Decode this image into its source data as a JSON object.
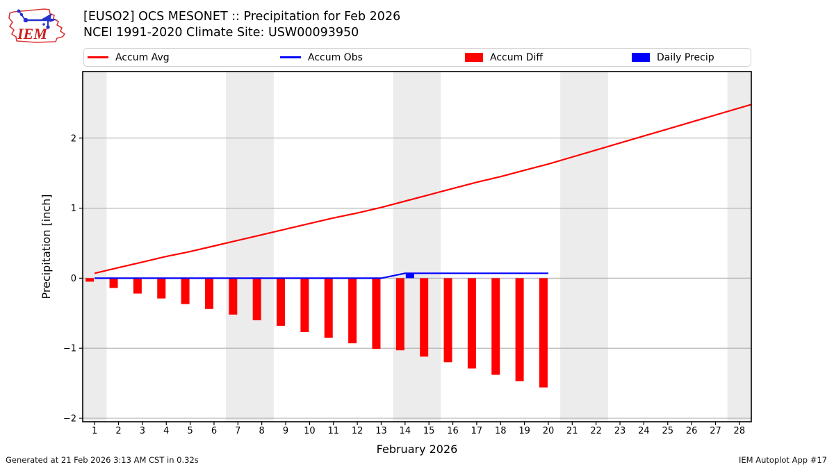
{
  "header": {
    "title_line1": "[EUSO2] OCS MESONET :: Precipitation for Feb 2026",
    "title_line2": "NCEI 1991-2020 Climate Site: USW00093950",
    "logo_text": "IEM"
  },
  "legend": {
    "items": [
      {
        "label": "Accum Avg",
        "swatch": "line",
        "color": "#ff0000"
      },
      {
        "label": "Accum Obs",
        "swatch": "line",
        "color": "#0000ff"
      },
      {
        "label": "Accum Diff",
        "swatch": "rect",
        "color": "#ff0000"
      },
      {
        "label": "Daily Precip",
        "swatch": "rect",
        "color": "#0000ff"
      }
    ]
  },
  "footer": {
    "left": "Generated at 21 Feb 2026 3:13 AM CST in 0.32s",
    "right": "IEM Autoplot App #17"
  },
  "chart_data": {
    "type": "line+bar",
    "xlabel": "February 2026",
    "ylabel": "Precipitation [inch]",
    "xlim": [
      0.5,
      28.5
    ],
    "ylim": [
      -2.05,
      2.95
    ],
    "yticks": [
      -2,
      -1,
      0,
      1,
      2
    ],
    "xticks": [
      1,
      2,
      3,
      4,
      5,
      6,
      7,
      8,
      9,
      10,
      11,
      12,
      13,
      14,
      15,
      16,
      17,
      18,
      19,
      20,
      21,
      22,
      23,
      24,
      25,
      26,
      27,
      28
    ],
    "grid": "horizontal",
    "weekend_bands": [
      [
        0.5,
        1.5
      ],
      [
        6.5,
        8.5
      ],
      [
        13.5,
        15.5
      ],
      [
        20.5,
        22.5
      ],
      [
        27.5,
        28.5
      ]
    ],
    "colors": {
      "weekend_band": "#ececec",
      "grid": "#adadad",
      "frame": "#000000"
    },
    "series": [
      {
        "name": "Accum Diff",
        "type": "bar",
        "align": "left",
        "color": "#ff0000",
        "x": [
          1,
          2,
          3,
          4,
          5,
          6,
          7,
          8,
          9,
          10,
          11,
          12,
          13,
          14,
          15,
          16,
          17,
          18,
          19,
          20
        ],
        "values": [
          -0.05,
          -0.14,
          -0.22,
          -0.29,
          -0.37,
          -0.44,
          -0.52,
          -0.6,
          -0.68,
          -0.77,
          -0.85,
          -0.93,
          -1.01,
          -1.03,
          -1.12,
          -1.2,
          -1.29,
          -1.38,
          -1.47,
          -1.56
        ]
      },
      {
        "name": "Daily Precip",
        "type": "bar",
        "align": "right",
        "color": "#0000ff",
        "x": [
          14
        ],
        "values": [
          0.07
        ]
      },
      {
        "name": "Accum Avg",
        "type": "line",
        "color": "#ff0000",
        "x": [
          1,
          2,
          3,
          4,
          5,
          6,
          7,
          8,
          9,
          10,
          11,
          12,
          13,
          14,
          15,
          16,
          17,
          18,
          19,
          20,
          21,
          22,
          23,
          24,
          25,
          26,
          27,
          28,
          28.5
        ],
        "values": [
          0.07,
          0.15,
          0.23,
          0.31,
          0.38,
          0.46,
          0.54,
          0.62,
          0.7,
          0.78,
          0.86,
          0.93,
          1.01,
          1.1,
          1.19,
          1.28,
          1.37,
          1.45,
          1.54,
          1.63,
          1.73,
          1.83,
          1.93,
          2.03,
          2.13,
          2.23,
          2.33,
          2.43,
          2.48
        ]
      },
      {
        "name": "Accum Obs",
        "type": "line",
        "color": "#0000ff",
        "x": [
          1,
          2,
          3,
          4,
          5,
          6,
          7,
          8,
          9,
          10,
          11,
          12,
          13,
          14,
          15,
          16,
          17,
          18,
          19,
          20
        ],
        "values": [
          0,
          0,
          0,
          0,
          0,
          0,
          0,
          0,
          0,
          0,
          0,
          0,
          0,
          0.07,
          0.07,
          0.07,
          0.07,
          0.07,
          0.07,
          0.07
        ]
      }
    ]
  }
}
